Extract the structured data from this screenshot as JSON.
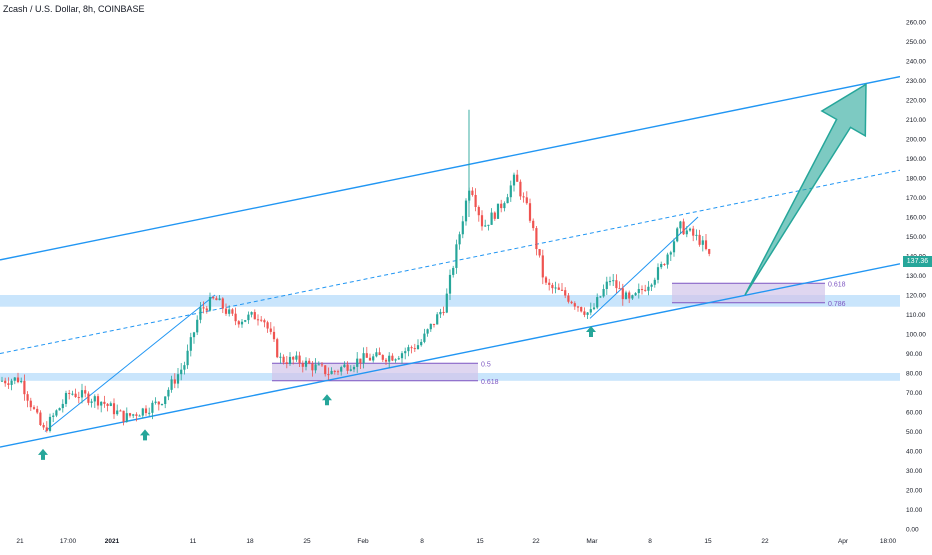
{
  "header": {
    "title": "Zcash / U.S. Dollar, 8h, COINBASE"
  },
  "current_price": "137.36",
  "colors": {
    "up": "#26a69a",
    "down": "#ef5350",
    "channel": "#2196f3",
    "zone": "#bbdefb",
    "fib_box": "#d1c4e9",
    "fib_line": "#7e57c2",
    "arrow": "#26a69a",
    "axis_text": "#131722"
  },
  "chart_data": {
    "type": "candlestick",
    "title": "Zcash / U.S. Dollar, 8h, COINBASE",
    "ylim": [
      0,
      260
    ],
    "y_ticks": [
      "0.00",
      "10.00",
      "20.00",
      "30.00",
      "40.00",
      "50.00",
      "60.00",
      "70.00",
      "80.00",
      "90.00",
      "100.00",
      "110.00",
      "120.00",
      "130.00",
      "140.00",
      "150.00",
      "160.00",
      "170.00",
      "180.00",
      "190.00",
      "200.00",
      "210.00",
      "220.00",
      "230.00",
      "240.00",
      "250.00",
      "260.00"
    ],
    "x_tick_labels": [
      "21",
      "17:00",
      "2021",
      "11",
      "18",
      "25",
      "Feb",
      "8",
      "15",
      "22",
      "Mar",
      "8",
      "15",
      "22",
      "Apr",
      "18:00"
    ],
    "trend_points": [
      {
        "x": 0,
        "y": 76
      },
      {
        "x": 20,
        "y": 77
      },
      {
        "x": 43,
        "y": 50
      },
      {
        "x": 70,
        "y": 70
      },
      {
        "x": 100,
        "y": 66
      },
      {
        "x": 125,
        "y": 57
      },
      {
        "x": 160,
        "y": 65
      },
      {
        "x": 185,
        "y": 85
      },
      {
        "x": 200,
        "y": 112
      },
      {
        "x": 215,
        "y": 118
      },
      {
        "x": 235,
        "y": 107
      },
      {
        "x": 262,
        "y": 110
      },
      {
        "x": 280,
        "y": 87
      },
      {
        "x": 300,
        "y": 86
      },
      {
        "x": 330,
        "y": 80
      },
      {
        "x": 360,
        "y": 87
      },
      {
        "x": 395,
        "y": 89
      },
      {
        "x": 420,
        "y": 95
      },
      {
        "x": 445,
        "y": 115
      },
      {
        "x": 455,
        "y": 140
      },
      {
        "x": 470,
        "y": 178
      },
      {
        "x": 483,
        "y": 155
      },
      {
        "x": 500,
        "y": 165
      },
      {
        "x": 515,
        "y": 180
      },
      {
        "x": 530,
        "y": 160
      },
      {
        "x": 545,
        "y": 125
      },
      {
        "x": 565,
        "y": 120
      },
      {
        "x": 590,
        "y": 110
      },
      {
        "x": 610,
        "y": 128
      },
      {
        "x": 630,
        "y": 116
      },
      {
        "x": 660,
        "y": 133
      },
      {
        "x": 680,
        "y": 155
      },
      {
        "x": 700,
        "y": 148
      },
      {
        "x": 712,
        "y": 137
      }
    ],
    "channel_lines": [
      {
        "name": "",
        "points": [
          [
            0,
            138
          ],
          [
            900,
            232
          ]
        ]
      },
      {
        "name": "",
        "points": [
          [
            0,
            42
          ],
          [
            900,
            136
          ]
        ]
      },
      {
        "name": "",
        "points": [
          [
            0,
            90
          ],
          [
            900,
            184
          ]
        ],
        "dashed": true
      }
    ],
    "support_zones": [
      {
        "y_top": 120,
        "y_bottom": 114
      },
      {
        "y_top": 80,
        "y_bottom": 76
      }
    ],
    "fib_zones": [
      {
        "x_start": 272,
        "x_end": 478,
        "top": 85,
        "bottom": 76,
        "top_label": "0.5",
        "bottom_label": "0.618"
      },
      {
        "x_start": 672,
        "x_end": 825,
        "top": 126,
        "bottom": 116,
        "top_label": "0.618",
        "bottom_label": "0.786"
      }
    ],
    "swing_legs": [
      {
        "from": [
          45,
          50
        ],
        "to": [
          215,
          120
        ]
      },
      {
        "from": [
          590,
          108
        ],
        "to": [
          698,
          160
        ]
      }
    ],
    "up_arrows": [
      {
        "x": 43,
        "y": 38
      },
      {
        "x": 145,
        "y": 48
      },
      {
        "x": 327,
        "y": 66
      },
      {
        "x": 591,
        "y": 101
      }
    ],
    "projection_arrow": {
      "from": [
        745,
        120
      ],
      "to": [
        866,
        228
      ]
    }
  }
}
